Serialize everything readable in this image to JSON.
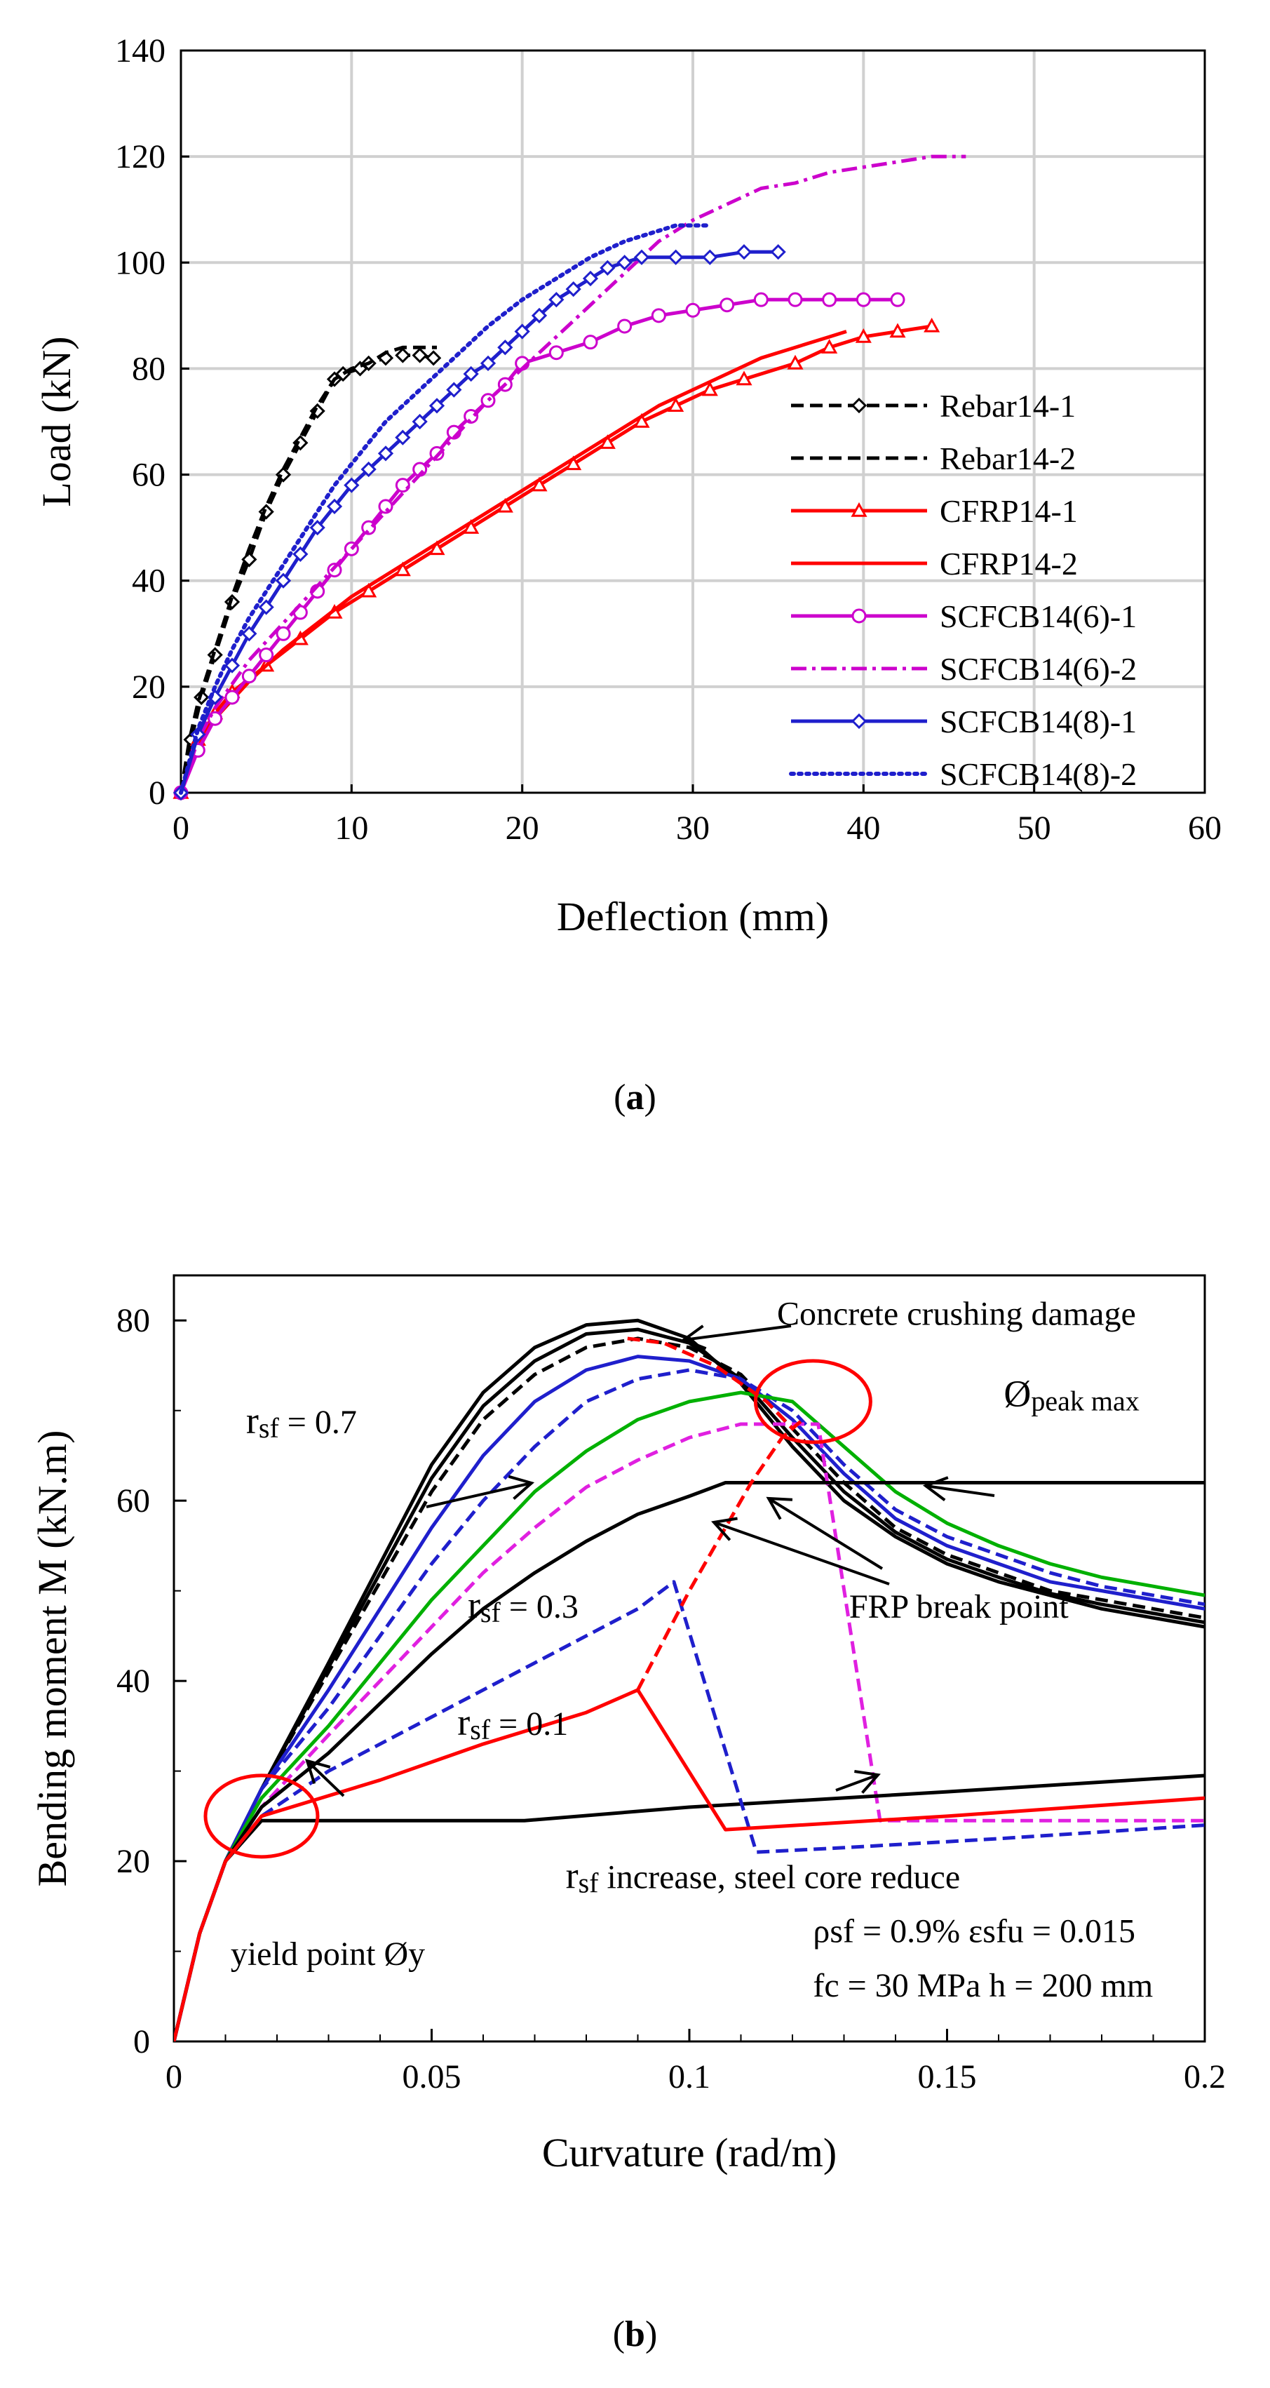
{
  "captions": {
    "a_open": "(",
    "a_letter": "a",
    "a_close": ")",
    "b_open": "(",
    "b_letter": "b",
    "b_close": ")"
  },
  "chart_data": [
    {
      "type": "line",
      "xlabel": "Deflection (mm)",
      "ylabel": "Load (kN)",
      "xlim": [
        0,
        60
      ],
      "ylim": [
        0,
        140
      ],
      "xticks": [
        0,
        10,
        20,
        30,
        40,
        50,
        60
      ],
      "yticks": [
        0,
        20,
        40,
        60,
        80,
        100,
        120,
        140
      ],
      "grid": true,
      "legend_position": "bottom-right",
      "series": [
        {
          "name": "Rebar14-1",
          "color": "#000000",
          "dash": "dashed",
          "marker": "diamond",
          "x": [
            0,
            0.6,
            1.2,
            2,
            3,
            4,
            5,
            6,
            7,
            8,
            9,
            9.5,
            10.5,
            11,
            12,
            13,
            14,
            14.8
          ],
          "y": [
            0,
            10,
            18,
            26,
            36,
            44,
            53,
            60,
            66,
            72,
            78,
            79,
            80,
            81,
            82,
            82.5,
            82.5,
            82
          ]
        },
        {
          "name": "Rebar14-2",
          "color": "#000000",
          "dash": "dashed",
          "marker": "none",
          "x": [
            0,
            0.5,
            1,
            2,
            3,
            4,
            5,
            6,
            7,
            8,
            9,
            10,
            11,
            12,
            13,
            14,
            15
          ],
          "y": [
            0,
            10,
            17,
            27,
            37,
            46,
            54,
            61,
            67,
            73,
            78,
            80,
            81,
            83,
            84,
            84,
            84
          ]
        },
        {
          "name": "CFRP14-1",
          "color": "#ff0000",
          "dash": "solid",
          "marker": "triangle",
          "x": [
            0,
            1,
            2,
            3,
            5,
            7,
            9,
            11,
            13,
            15,
            17,
            19,
            21,
            23,
            25,
            27,
            29,
            31,
            33,
            36,
            38,
            40,
            42,
            44
          ],
          "y": [
            0,
            10,
            15,
            19,
            24,
            29,
            34,
            38,
            42,
            46,
            50,
            54,
            58,
            62,
            66,
            70,
            73,
            76,
            78,
            81,
            84,
            86,
            87,
            88
          ]
        },
        {
          "name": "CFRP14-2",
          "color": "#ff0000",
          "dash": "solid",
          "marker": "none",
          "x": [
            0,
            1,
            2,
            4,
            6,
            8,
            10,
            12,
            14,
            16,
            18,
            20,
            22,
            24,
            26,
            28,
            30,
            32,
            34,
            36,
            38,
            39
          ],
          "y": [
            0,
            9,
            14,
            21,
            27,
            32,
            37,
            41,
            45,
            49,
            53,
            57,
            61,
            65,
            69,
            73,
            76,
            79,
            82,
            84,
            86,
            87
          ]
        },
        {
          "name": "SCFCB14(6)-1",
          "color": "#cc00cc",
          "dash": "solid",
          "marker": "circle",
          "x": [
            0,
            1,
            2,
            3,
            4,
            5,
            6,
            7,
            8,
            9,
            10,
            11,
            12,
            13,
            14,
            15,
            16,
            17,
            18,
            19,
            20,
            22,
            24,
            26,
            28,
            30,
            32,
            34,
            36,
            38,
            40,
            42
          ],
          "y": [
            0,
            8,
            14,
            18,
            22,
            26,
            30,
            34,
            38,
            42,
            46,
            50,
            54,
            58,
            61,
            64,
            68,
            71,
            74,
            77,
            81,
            83,
            85,
            88,
            90,
            91,
            92,
            93,
            93,
            93,
            93,
            93
          ]
        },
        {
          "name": "SCFCB14(6)-2",
          "color": "#cc00cc",
          "dash": "dashdot",
          "marker": "none",
          "x": [
            0,
            1,
            2,
            4,
            6,
            8,
            10,
            12,
            14,
            16,
            18,
            20,
            22,
            24,
            26,
            28,
            30,
            32,
            34,
            36,
            38,
            40,
            42,
            44,
            46
          ],
          "y": [
            0,
            10,
            16,
            25,
            32,
            39,
            46,
            53,
            60,
            67,
            74,
            80,
            86,
            92,
            98,
            104,
            108,
            111,
            114,
            115,
            117,
            118,
            119,
            120,
            120
          ]
        },
        {
          "name": "SCFCB14(8)-1",
          "color": "#1f1fcc",
          "dash": "solid",
          "marker": "diamond",
          "x": [
            0,
            1,
            2,
            3,
            4,
            5,
            6,
            7,
            8,
            9,
            10,
            11,
            12,
            13,
            14,
            15,
            16,
            17,
            18,
            19,
            20,
            21,
            22,
            23,
            24,
            25,
            26,
            27,
            29,
            31,
            33,
            35
          ],
          "y": [
            0,
            11,
            18,
            24,
            30,
            35,
            40,
            45,
            50,
            54,
            58,
            61,
            64,
            67,
            70,
            73,
            76,
            79,
            81,
            84,
            87,
            90,
            93,
            95,
            97,
            99,
            100,
            101,
            101,
            101,
            102,
            102
          ]
        },
        {
          "name": "SCFCB14(8)-2",
          "color": "#1f1fcc",
          "dash": "dotted",
          "marker": "none",
          "x": [
            0,
            1,
            2,
            3,
            4,
            5,
            6,
            7,
            8,
            9,
            10,
            11,
            12,
            13,
            14,
            15,
            16,
            18,
            20,
            22,
            24,
            26,
            28,
            29,
            31
          ],
          "y": [
            0,
            12,
            20,
            27,
            33,
            38,
            43,
            48,
            53,
            58,
            62,
            66,
            70,
            73,
            76,
            79,
            82,
            88,
            93,
            97,
            101,
            104,
            106,
            107,
            107
          ]
        }
      ]
    },
    {
      "type": "line",
      "xlabel": "Curvature  (rad/m)",
      "ylabel": "Bending moment  M  (kN.m)",
      "xlim": [
        0,
        0.2
      ],
      "ylim": [
        0,
        85
      ],
      "xticks": [
        0,
        0.05,
        0.1,
        0.15,
        0.2
      ],
      "xtick_labels": [
        "0",
        "0.05",
        "0.1",
        "0.15",
        "0.2"
      ],
      "yticks": [
        0,
        20,
        40,
        60,
        80
      ],
      "grid": false,
      "series": [
        {
          "color": "#000000",
          "dash": "solid",
          "x": [
            0,
            0.005,
            0.01,
            0.017,
            0.03,
            0.04,
            0.05,
            0.06,
            0.07,
            0.08,
            0.09,
            0.1,
            0.11,
            0.12,
            0.13,
            0.14,
            0.15,
            0.16,
            0.17,
            0.18,
            0.19,
            0.2
          ],
          "y": [
            0,
            12,
            20,
            28,
            42,
            53,
            64,
            72,
            77,
            79.5,
            80,
            78,
            73,
            66,
            60,
            56,
            53,
            51,
            49.5,
            48,
            47,
            46
          ]
        },
        {
          "color": "#000000",
          "dash": "dashed",
          "x": [
            0,
            0.005,
            0.01,
            0.017,
            0.03,
            0.04,
            0.05,
            0.06,
            0.07,
            0.08,
            0.09,
            0.1,
            0.11,
            0.12,
            0.13,
            0.14,
            0.15,
            0.16,
            0.17,
            0.18,
            0.19,
            0.2
          ],
          "y": [
            0,
            12,
            20,
            28,
            41,
            51,
            61,
            69,
            74,
            77,
            78,
            77,
            74,
            68,
            62,
            57,
            54,
            52,
            50,
            49,
            48,
            47
          ]
        },
        {
          "color": "#000000",
          "dash": "solid",
          "x": [
            0,
            0.005,
            0.01,
            0.017,
            0.03,
            0.04,
            0.05,
            0.06,
            0.07,
            0.08,
            0.09,
            0.1,
            0.11,
            0.12,
            0.13,
            0.14,
            0.15,
            0.16,
            0.17,
            0.18,
            0.19,
            0.2
          ],
          "y": [
            0,
            12,
            20,
            28,
            41.5,
            52,
            62.5,
            70.5,
            75.5,
            78.5,
            79,
            77.5,
            73.5,
            67,
            61,
            56.5,
            53.5,
            51.5,
            49.7,
            48.5,
            47.5,
            46.5
          ]
        },
        {
          "color": "#1f1fcc",
          "dash": "solid",
          "x": [
            0,
            0.005,
            0.01,
            0.017,
            0.03,
            0.04,
            0.05,
            0.06,
            0.07,
            0.08,
            0.09,
            0.1,
            0.11,
            0.12,
            0.13,
            0.14,
            0.15,
            0.16,
            0.17,
            0.18,
            0.19,
            0.2
          ],
          "y": [
            0,
            12,
            20,
            28,
            39,
            48,
            57,
            65,
            71,
            74.5,
            76,
            75.5,
            73.5,
            69,
            63,
            58,
            55,
            53,
            51,
            50,
            49,
            48
          ]
        },
        {
          "color": "#1f1fcc",
          "dash": "dashed",
          "x": [
            0,
            0.005,
            0.01,
            0.017,
            0.03,
            0.04,
            0.05,
            0.06,
            0.07,
            0.08,
            0.09,
            0.1,
            0.11,
            0.12,
            0.13,
            0.14,
            0.15,
            0.16,
            0.17,
            0.18,
            0.19,
            0.2
          ],
          "y": [
            0,
            12,
            20,
            28,
            37,
            45,
            53,
            60,
            66,
            71,
            73.5,
            74.5,
            73.5,
            70,
            64,
            59,
            56,
            54,
            52,
            50.5,
            49.5,
            48.5
          ]
        },
        {
          "color": "#00b000",
          "dash": "solid",
          "x": [
            0,
            0.005,
            0.01,
            0.017,
            0.03,
            0.04,
            0.05,
            0.06,
            0.07,
            0.08,
            0.09,
            0.1,
            0.11,
            0.12,
            0.13,
            0.14,
            0.15,
            0.16,
            0.17,
            0.18,
            0.19,
            0.2
          ],
          "y": [
            0,
            12,
            20,
            27,
            35,
            42,
            49,
            55,
            61,
            65.5,
            69,
            71,
            72,
            71,
            66,
            61,
            57.5,
            55,
            53,
            51.5,
            50.5,
            49.5
          ]
        },
        {
          "color": "#e020e0",
          "dash": "dashed",
          "x": [
            0,
            0.005,
            0.01,
            0.017,
            0.03,
            0.04,
            0.05,
            0.06,
            0.07,
            0.08,
            0.09,
            0.1,
            0.11,
            0.12,
            0.125,
            0.137,
            0.2
          ],
          "y": [
            0,
            12,
            20,
            26,
            34,
            40,
            46,
            52,
            57,
            61.5,
            64.5,
            67,
            68.5,
            68.5,
            68.5,
            24.5,
            24.5
          ]
        },
        {
          "color": "#000000",
          "dash": "solid",
          "x": [
            0,
            0.005,
            0.01,
            0.017,
            0.03,
            0.04,
            0.05,
            0.06,
            0.07,
            0.08,
            0.09,
            0.1,
            0.107,
            0.2
          ],
          "y": [
            0,
            12,
            20,
            26,
            32,
            37.5,
            43,
            48,
            52,
            55.5,
            58.5,
            60.5,
            62,
            62
          ]
        },
        {
          "color": "#000000",
          "dash": "solid",
          "x": [
            0,
            0.005,
            0.01,
            0.017,
            0.068,
            0.1,
            0.15,
            0.2
          ],
          "y": [
            0,
            12,
            20,
            24.5,
            24.5,
            26,
            27.7,
            29.5
          ]
        },
        {
          "color": "#1f1fcc",
          "dash": "dashed",
          "x": [
            0,
            0.005,
            0.01,
            0.017,
            0.03,
            0.05,
            0.07,
            0.09,
            0.097,
            0.113,
            0.13,
            0.16,
            0.2
          ],
          "y": [
            0,
            12,
            20,
            25,
            30,
            36,
            42,
            48,
            51,
            21,
            21.5,
            22.5,
            24
          ]
        },
        {
          "color": "#ff0000",
          "dash": "solid",
          "x": [
            0,
            0.005,
            0.01,
            0.017,
            0.04,
            0.06,
            0.08,
            0.09,
            0.107,
            0.15,
            0.2
          ],
          "y": [
            0,
            12,
            20,
            25,
            29,
            33,
            36.5,
            39,
            23.5,
            25,
            27
          ]
        },
        {
          "color": "#ff0000",
          "dash": "dashed",
          "x": [
            0.09,
            0.1,
            0.112,
            0.118,
            0.122
          ],
          "y": [
            39,
            50,
            62,
            67,
            69
          ],
          "role": "FRP break point locus"
        },
        {
          "color": "#ff0000",
          "dash": "dashed",
          "x": [
            0.088,
            0.095,
            0.105,
            0.115,
            0.12
          ],
          "y": [
            78,
            77.5,
            75,
            71,
            68
          ],
          "role": "Concrete crushing damage locus"
        }
      ],
      "annotations": [
        {
          "text": "Concrete crushing damage",
          "x": 0.117,
          "y": 79.5
        },
        {
          "text_main": "Ø",
          "text_sub": "peak max",
          "x": 0.161,
          "y": 70.5
        },
        {
          "text_main": "r",
          "text_sub": "sf",
          "text_rest": " = 0.7",
          "x": 0.014,
          "y": 67.5
        },
        {
          "text_main": "r",
          "text_sub": "sf",
          "text_rest": " = 0.3",
          "x": 0.057,
          "y": 47
        },
        {
          "text_main": "r",
          "text_sub": "sf",
          "text_rest": " = 0.1",
          "x": 0.055,
          "y": 34
        },
        {
          "text": "FRP break point",
          "x": 0.131,
          "y": 47
        },
        {
          "text_main": "r",
          "text_sub": "sf",
          "text_rest": " increase, steel core reduce",
          "x": 0.076,
          "y": 17
        },
        {
          "text": "yield point Øy",
          "x": 0.011,
          "y": 8.5
        },
        {
          "text": "ρsf = 0.9%  εsfu = 0.015",
          "x": 0.124,
          "y": 11
        },
        {
          "text": "fc = 30 MPa  h = 200 mm",
          "x": 0.124,
          "y": 5
        }
      ]
    }
  ]
}
